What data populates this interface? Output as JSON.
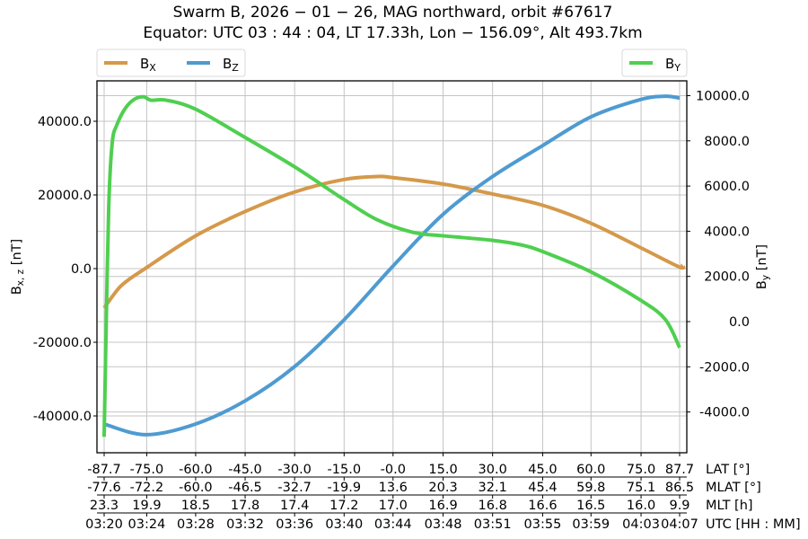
{
  "title": {
    "line1": "Swarm B,  2026 − 01 − 26,  MAG northward,  orbit #67617",
    "line2": "Equator:  UTC 03 : 44 : 04,  LT 17.33h,  Lon  − 156.09°,  Alt 493.7km"
  },
  "legend_left": [
    {
      "label": "B",
      "sub": "X",
      "color": "#d4994a"
    },
    {
      "label": "B",
      "sub": "Z",
      "color": "#4e9bd1"
    }
  ],
  "legend_right": [
    {
      "label": "B",
      "sub": "Y",
      "color": "#4fcf4f"
    }
  ],
  "axes": {
    "left_label": "B",
    "left_label_sub": "x, z",
    "left_label_unit": " [nT]",
    "right_label": "B",
    "right_label_sub": "y",
    "right_label_unit": " [nT]"
  },
  "x_rows": [
    {
      "name": "LAT [°]",
      "ticks": [
        "-87.7",
        "-75.0",
        "-60.0",
        "-45.0",
        "-30.0",
        "-15.0",
        "-0.0",
        "15.0",
        "30.0",
        "45.0",
        "60.0",
        "75.0",
        "87.7"
      ]
    },
    {
      "name": "MLAT [°]",
      "ticks": [
        "-77.6",
        "-72.2",
        "-60.0",
        "-46.5",
        "-32.7",
        "-19.9",
        "13.6",
        "20.3",
        "32.1",
        "45.4",
        "59.8",
        "75.1",
        "86.5"
      ]
    },
    {
      "name": "MLT [h]",
      "ticks": [
        "23.3",
        "19.9",
        "18.5",
        "17.8",
        "17.4",
        "17.2",
        "17.0",
        "16.9",
        "16.8",
        "16.6",
        "16.5",
        "16.0",
        "9.9"
      ]
    },
    {
      "name": "UTC [HH : MM]",
      "ticks": [
        "03:20",
        "03:24",
        "03:28",
        "03:32",
        "03:36",
        "03:40",
        "03:44",
        "03:48",
        "03:51",
        "03:55",
        "03:59",
        "04:03",
        "04:07"
      ]
    }
  ],
  "chart_data": {
    "type": "line",
    "title": "Swarm B, 2026-01-26, MAG northward, orbit #67617 — Equator: UTC 03:44:04, LT 17.33h, Lon -156.09°, Alt 493.7km",
    "xlabel": "LAT [°] / MLAT [°] / MLT [h] / UTC [HH:MM]",
    "ylabel": "Bx,z [nT]",
    "ylabel_right": "By [nT]",
    "ylim": [
      -50000,
      50000
    ],
    "ylim_right": [
      -5800,
      10500
    ],
    "yticks_left": [
      "40000.0",
      "20000.0",
      "0.0",
      "-20000.0",
      "-40000.0"
    ],
    "yticks_left_values": [
      40000,
      20000,
      0,
      -20000,
      -40000
    ],
    "yticks_right": [
      "10000.0",
      "8000.0",
      "6000.0",
      "4000.0",
      "2000.0",
      "0.0",
      "-2000.0",
      "-4000.0"
    ],
    "yticks_right_values": [
      10000,
      8000,
      6000,
      4000,
      2000,
      0,
      -2000,
      -4000
    ],
    "x_tick_positions": [
      0.0,
      0.074,
      0.159,
      0.245,
      0.331,
      0.417,
      0.502,
      0.589,
      0.675,
      0.762,
      0.846,
      0.933,
      1.0
    ],
    "grid": true,
    "legend_position": "top-left (Bx, Bz) and top-right (By)",
    "series": [
      {
        "name": "Bx",
        "axis": "left",
        "color": "#d4994a",
        "x": [
          0.0,
          0.03,
          0.073,
          0.159,
          0.245,
          0.331,
          0.417,
          0.475,
          0.502,
          0.588,
          0.674,
          0.762,
          0.846,
          0.932,
          1.0,
          1.005
        ],
        "values": [
          -10700,
          -4600,
          200,
          8900,
          15500,
          20800,
          24200,
          25000,
          24700,
          23000,
          20300,
          17200,
          12300,
          5700,
          400,
          1000
        ]
      },
      {
        "name": "Bz",
        "axis": "left",
        "color": "#4e9bd1",
        "x": [
          0.0,
          0.073,
          0.159,
          0.245,
          0.331,
          0.417,
          0.502,
          0.588,
          0.674,
          0.762,
          0.846,
          0.932,
          0.975,
          1.0
        ],
        "values": [
          -42200,
          -45100,
          -42200,
          -35900,
          -26600,
          -13900,
          700,
          14600,
          24900,
          33400,
          41200,
          45900,
          46800,
          46300
        ]
      },
      {
        "name": "By",
        "axis": "right",
        "color": "#4fcf4f",
        "x": [
          0.0,
          0.003,
          0.008,
          0.014,
          0.022,
          0.037,
          0.053,
          0.069,
          0.081,
          0.108,
          0.159,
          0.245,
          0.331,
          0.417,
          0.475,
          0.537,
          0.588,
          0.674,
          0.724,
          0.762,
          0.846,
          0.932,
          0.975,
          1.0
        ],
        "values": [
          -5100,
          -900,
          5100,
          7900,
          8700,
          9450,
          9850,
          9950,
          9800,
          9800,
          9400,
          8150,
          6850,
          5400,
          4500,
          3950,
          3800,
          3600,
          3400,
          3100,
          2200,
          950,
          100,
          -1150
        ]
      }
    ]
  }
}
